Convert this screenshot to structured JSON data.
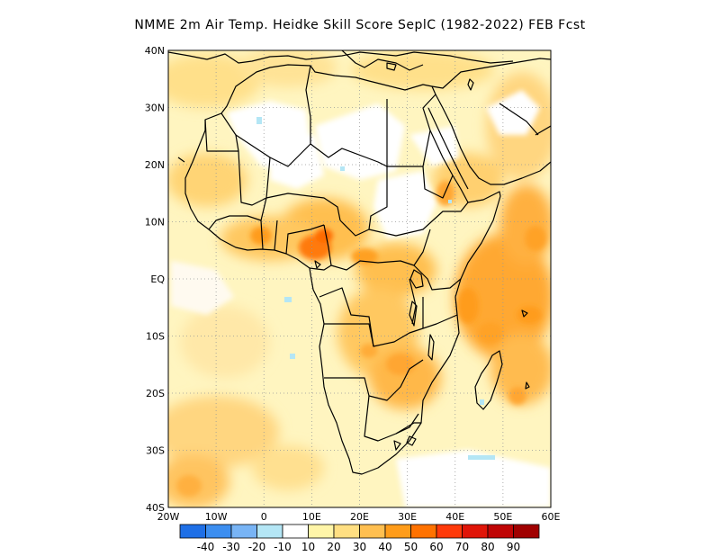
{
  "title": "NMME  2m Air Temp. Heidke Skill Score SeplC (1982-2022) FEB Fcst",
  "map": {
    "lon_range": [
      -20,
      60
    ],
    "lat_range": [
      -40,
      40
    ],
    "lon_ticks": [
      {
        "value": -20,
        "label": "20W"
      },
      {
        "value": -10,
        "label": "10W"
      },
      {
        "value": 0,
        "label": "0"
      },
      {
        "value": 10,
        "label": "10E"
      },
      {
        "value": 20,
        "label": "20E"
      },
      {
        "value": 30,
        "label": "30E"
      },
      {
        "value": 40,
        "label": "40E"
      },
      {
        "value": 50,
        "label": "50E"
      },
      {
        "value": 60,
        "label": "60E"
      }
    ],
    "lat_ticks": [
      {
        "value": 40,
        "label": "40N"
      },
      {
        "value": 30,
        "label": "30N"
      },
      {
        "value": 20,
        "label": "20N"
      },
      {
        "value": 10,
        "label": "10N"
      },
      {
        "value": 0,
        "label": "EQ"
      },
      {
        "value": -10,
        "label": "10S"
      },
      {
        "value": -20,
        "label": "20S"
      },
      {
        "value": -30,
        "label": "30S"
      },
      {
        "value": -40,
        "label": "40S"
      }
    ],
    "grid": "dotted"
  },
  "colorbar": {
    "labels": [
      "-40",
      "-30",
      "-20",
      "-10",
      "10",
      "20",
      "30",
      "40",
      "50",
      "60",
      "70",
      "80",
      "90"
    ],
    "colors": [
      "#1e6fe6",
      "#3c8ef0",
      "#78b4f5",
      "#b4e6f5",
      "#ffffff",
      "#fff5a8",
      "#ffdf82",
      "#ffbf50",
      "#ff9c1a",
      "#ff7200",
      "#ff3a0a",
      "#e01508",
      "#c00505",
      "#a00000"
    ]
  }
}
